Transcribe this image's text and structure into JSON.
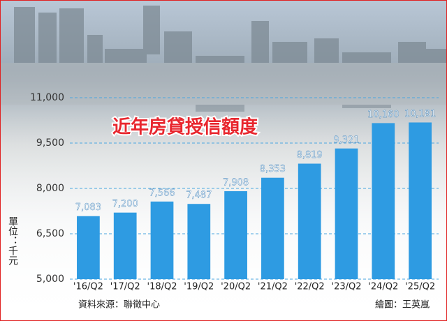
{
  "chart_data": {
    "type": "bar",
    "title": "近年房貸授信額度",
    "y_label": "單位：千元",
    "source": "資料來源：聯徵中心",
    "credit": "繪圖：王英嵐",
    "categories": [
      "'16/Q2",
      "'17/Q2",
      "'18/Q2",
      "'19/Q2",
      "'20/Q2",
      "'21/Q2",
      "'22/Q2",
      "'23/Q2",
      "'24/Q2",
      "'25/Q2"
    ],
    "values": [
      7083,
      7200,
      7566,
      7487,
      7908,
      8353,
      8819,
      9321,
      10160,
      10181
    ],
    "value_labels": [
      "7,083",
      "7,200",
      "7,566",
      "7,487",
      "7,908",
      "8,353",
      "8,819",
      "9,321",
      "10,160",
      "10,181"
    ],
    "color": "#2e9be2",
    "ylim": [
      5000,
      11000
    ],
    "yticks": [
      {
        "value": 5000,
        "label": "5,000"
      },
      {
        "value": 6500,
        "label": "6,500"
      },
      {
        "value": 8000,
        "label": "8,000"
      },
      {
        "value": 9500,
        "label": "9,500"
      },
      {
        "value": 11000,
        "label": "11,000"
      }
    ],
    "grid": true
  }
}
